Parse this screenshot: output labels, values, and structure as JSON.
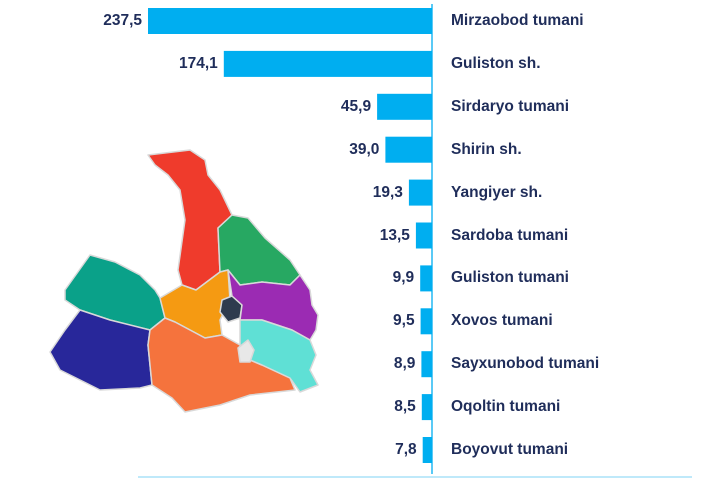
{
  "chart_data": {
    "type": "bar",
    "orientation": "horizontal",
    "categories": [
      "Mirzaobod tumani",
      "Guliston sh.",
      "Sirdaryo tumani",
      "Shirin sh.",
      "Yangiyer sh.",
      "Sardoba tumani",
      "Guliston tumani",
      "Xovos tumani",
      "Sayxunobod tumani",
      "Oqoltin tumani",
      "Boyovut tumani"
    ],
    "values": [
      237.5,
      174.1,
      45.9,
      39.0,
      19.3,
      13.5,
      9.9,
      9.5,
      8.9,
      8.5,
      7.8
    ],
    "value_labels": [
      "237,5",
      "174,1",
      "45,9",
      "39,0",
      "19,3",
      "13,5",
      "9,9",
      "9,5",
      "8,9",
      "8,5",
      "7,8"
    ],
    "bar_color": "#00aef0",
    "axis_color": "#00aef0",
    "label_color": "#1f2d5a",
    "bars_extend": "left-from-axis",
    "grid": false,
    "legend": "none"
  },
  "map": {
    "regions": [
      {
        "name": "north-red",
        "color": "#ef3b2c"
      },
      {
        "name": "north-green",
        "color": "#27a862"
      },
      {
        "name": "west-teal",
        "color": "#0aa189"
      },
      {
        "name": "center-orange",
        "color": "#f59a12"
      },
      {
        "name": "center-dark",
        "color": "#2e3b4e"
      },
      {
        "name": "east-purple",
        "color": "#9b2bb3"
      },
      {
        "name": "southwest-navy",
        "color": "#28279a"
      },
      {
        "name": "south-orange",
        "color": "#f5733d"
      },
      {
        "name": "southeast-turquoise",
        "color": "#5fe0d5"
      },
      {
        "name": "center-white",
        "color": "#e8e8e8"
      }
    ]
  }
}
